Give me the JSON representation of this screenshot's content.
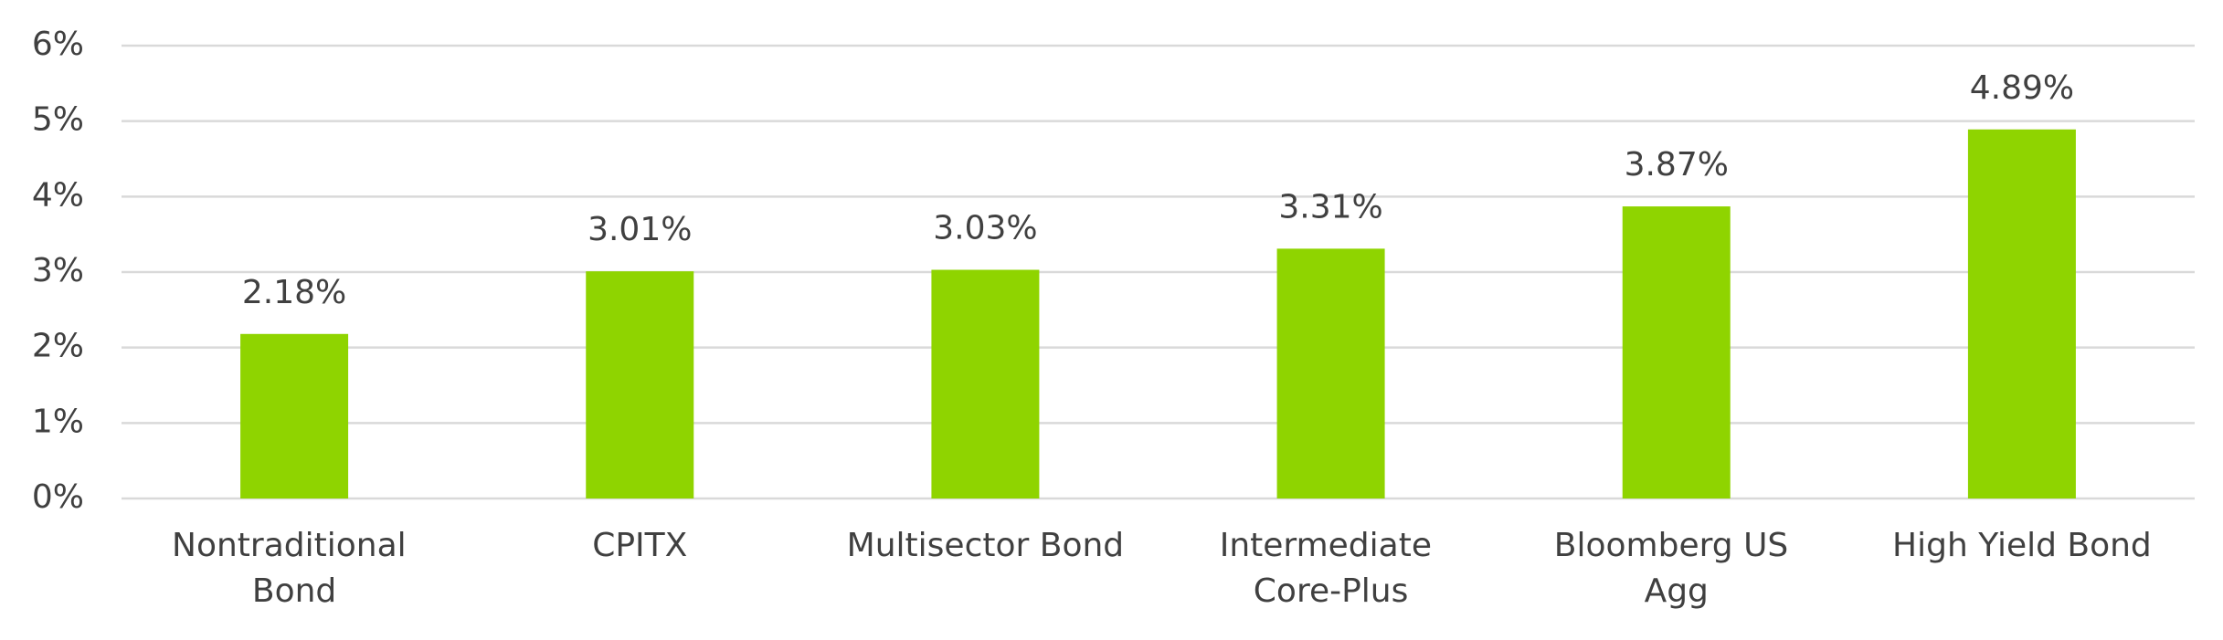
{
  "chart_data": {
    "type": "bar",
    "categories": [
      "Nontraditional\nBond",
      "CPITX",
      "Multisector Bond",
      "Intermediate\nCore-Plus",
      "Bloomberg US\nAgg",
      "High Yield Bond"
    ],
    "values": [
      2.18,
      3.01,
      3.03,
      3.31,
      3.87,
      4.89
    ],
    "value_labels": [
      "2.18%",
      "3.01%",
      "3.03%",
      "3.31%",
      "3.87%",
      "4.89%"
    ],
    "color": "#8fd400",
    "ylim": [
      0,
      6
    ],
    "yticks": [
      {
        "value": 0,
        "label": "0%"
      },
      {
        "value": 1,
        "label": "1%"
      },
      {
        "value": 2,
        "label": "2%"
      },
      {
        "value": 3,
        "label": "3%"
      },
      {
        "value": 4,
        "label": "4%"
      },
      {
        "value": 5,
        "label": "5%"
      },
      {
        "value": 6,
        "label": "6%"
      }
    ],
    "grid": true
  }
}
